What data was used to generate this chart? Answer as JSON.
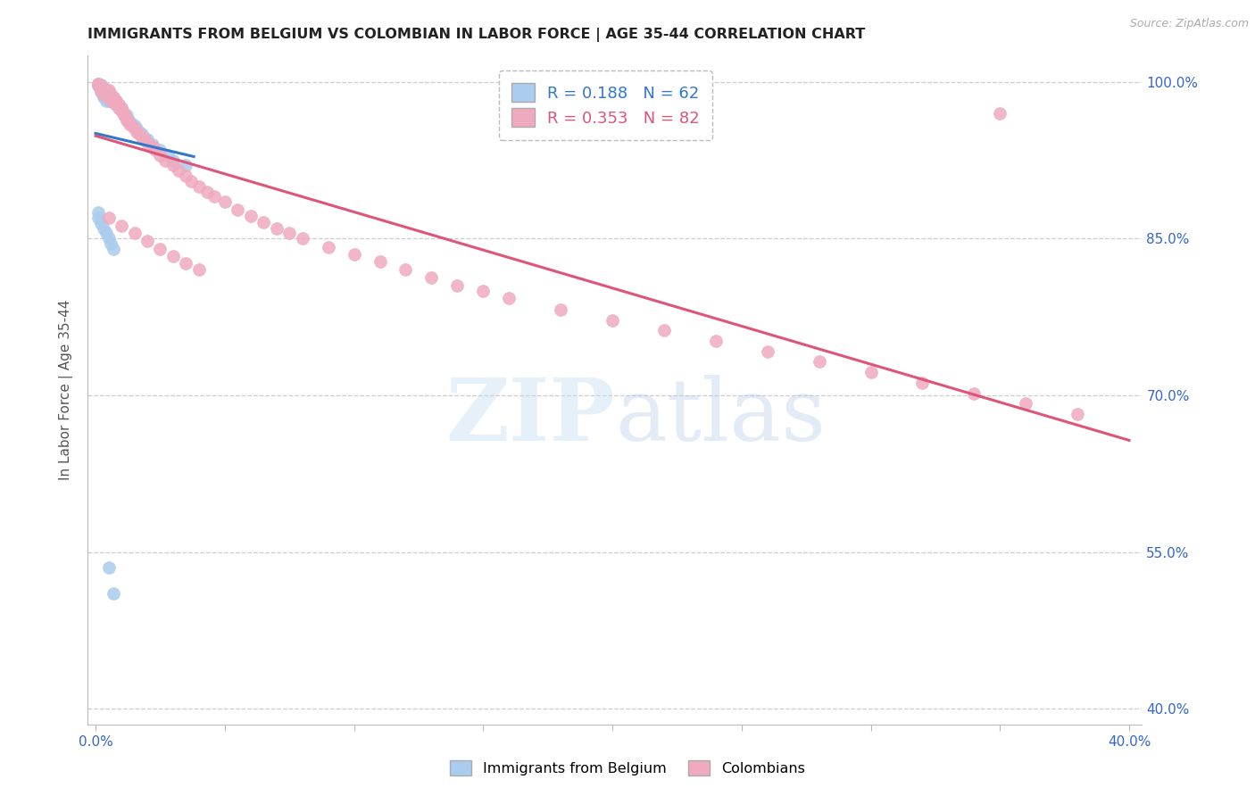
{
  "title": "IMMIGRANTS FROM BELGIUM VS COLOMBIAN IN LABOR FORCE | AGE 35-44 CORRELATION CHART",
  "source": "Source: ZipAtlas.com",
  "ylabel": "In Labor Force | Age 35-44",
  "xlim": [
    -0.003,
    0.405
  ],
  "ylim": [
    0.385,
    1.025
  ],
  "xtick_positions": [
    0.0,
    0.05,
    0.1,
    0.15,
    0.2,
    0.25,
    0.3,
    0.35,
    0.4
  ],
  "ytick_positions": [
    0.4,
    0.55,
    0.7,
    0.85,
    1.0
  ],
  "yticklabels": [
    "40.0%",
    "55.0%",
    "70.0%",
    "85.0%",
    "100.0%"
  ],
  "r_belgium": 0.188,
  "n_belgium": 62,
  "r_colombian": 0.353,
  "n_colombian": 82,
  "color_belgium": "#aaccee",
  "color_colombian": "#f0aac0",
  "line_color_belgium": "#3377cc",
  "line_color_colombian": "#dd5577",
  "label_belgium": "Immigrants from Belgium",
  "label_colombian": "Colombians",
  "watermark_zip": "ZIP",
  "watermark_atlas": "atlas",
  "bg_color": "#ffffff",
  "grid_color": "#cccccc",
  "axis_label_color": "#3366cc",
  "title_color": "#222222",
  "belgium_x": [
    0.001,
    0.001,
    0.001,
    0.001,
    0.002,
    0.002,
    0.002,
    0.002,
    0.002,
    0.002,
    0.003,
    0.003,
    0.003,
    0.003,
    0.003,
    0.004,
    0.004,
    0.004,
    0.004,
    0.005,
    0.005,
    0.005,
    0.005,
    0.006,
    0.006,
    0.006,
    0.007,
    0.007,
    0.007,
    0.008,
    0.008,
    0.008,
    0.009,
    0.009,
    0.01,
    0.01,
    0.011,
    0.011,
    0.012,
    0.012,
    0.013,
    0.014,
    0.015,
    0.016,
    0.017,
    0.018,
    0.02,
    0.022,
    0.025,
    0.028,
    0.03,
    0.035,
    0.001,
    0.001,
    0.002,
    0.003,
    0.004,
    0.005,
    0.006,
    0.007,
    0.005,
    0.007
  ],
  "belgium_y": [
    0.998,
    0.998,
    0.997,
    0.996,
    0.997,
    0.996,
    0.995,
    0.994,
    0.992,
    0.99,
    0.995,
    0.993,
    0.99,
    0.988,
    0.985,
    0.992,
    0.988,
    0.985,
    0.982,
    0.99,
    0.988,
    0.985,
    0.982,
    0.988,
    0.985,
    0.982,
    0.985,
    0.982,
    0.98,
    0.982,
    0.98,
    0.978,
    0.978,
    0.975,
    0.975,
    0.972,
    0.97,
    0.968,
    0.968,
    0.965,
    0.962,
    0.96,
    0.958,
    0.955,
    0.952,
    0.95,
    0.945,
    0.94,
    0.935,
    0.93,
    0.925,
    0.92,
    0.875,
    0.87,
    0.865,
    0.86,
    0.855,
    0.85,
    0.845,
    0.84,
    0.535,
    0.51
  ],
  "colombian_x": [
    0.001,
    0.001,
    0.002,
    0.002,
    0.002,
    0.003,
    0.003,
    0.003,
    0.004,
    0.004,
    0.005,
    0.005,
    0.005,
    0.006,
    0.006,
    0.006,
    0.007,
    0.007,
    0.008,
    0.008,
    0.009,
    0.009,
    0.01,
    0.01,
    0.011,
    0.011,
    0.012,
    0.012,
    0.013,
    0.014,
    0.015,
    0.016,
    0.017,
    0.018,
    0.019,
    0.02,
    0.022,
    0.023,
    0.025,
    0.027,
    0.03,
    0.032,
    0.035,
    0.037,
    0.04,
    0.043,
    0.046,
    0.05,
    0.055,
    0.06,
    0.065,
    0.07,
    0.075,
    0.08,
    0.09,
    0.1,
    0.11,
    0.12,
    0.13,
    0.14,
    0.15,
    0.16,
    0.18,
    0.2,
    0.22,
    0.24,
    0.26,
    0.28,
    0.3,
    0.32,
    0.34,
    0.36,
    0.38,
    0.005,
    0.01,
    0.015,
    0.02,
    0.025,
    0.03,
    0.035,
    0.04,
    0.35
  ],
  "colombian_y": [
    0.997,
    0.998,
    0.996,
    0.995,
    0.992,
    0.993,
    0.99,
    0.988,
    0.99,
    0.987,
    0.992,
    0.988,
    0.985,
    0.988,
    0.985,
    0.982,
    0.985,
    0.982,
    0.982,
    0.978,
    0.978,
    0.975,
    0.975,
    0.972,
    0.97,
    0.968,
    0.965,
    0.963,
    0.96,
    0.958,
    0.955,
    0.952,
    0.95,
    0.947,
    0.945,
    0.942,
    0.938,
    0.935,
    0.93,
    0.925,
    0.92,
    0.915,
    0.91,
    0.905,
    0.9,
    0.895,
    0.89,
    0.885,
    0.878,
    0.872,
    0.866,
    0.86,
    0.855,
    0.85,
    0.842,
    0.835,
    0.828,
    0.82,
    0.813,
    0.805,
    0.8,
    0.793,
    0.782,
    0.772,
    0.762,
    0.752,
    0.742,
    0.732,
    0.722,
    0.712,
    0.702,
    0.692,
    0.682,
    0.87,
    0.862,
    0.855,
    0.848,
    0.84,
    0.833,
    0.826,
    0.82,
    0.97
  ]
}
